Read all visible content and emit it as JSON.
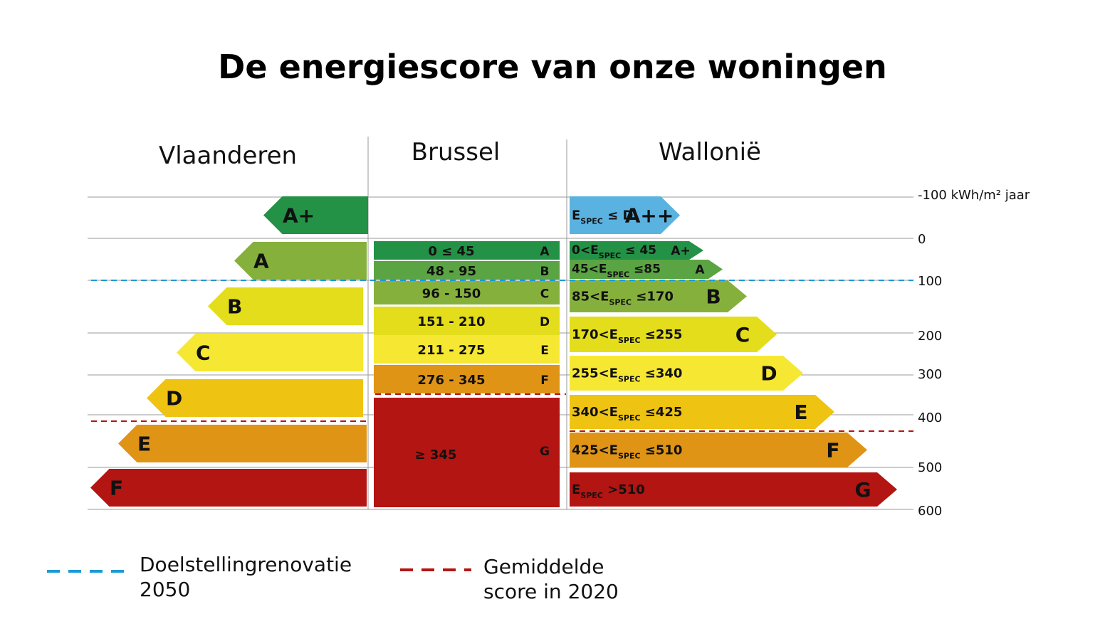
{
  "title": "De energiescore van onze woningen",
  "regions": {
    "vlaanderen": "Vlaanderen",
    "brussel": "Brussel",
    "wallonie": "Wallonië"
  },
  "scale_labels": [
    "-100 kWh/m² jaar",
    "0",
    "100",
    "200",
    "300",
    "400",
    "500",
    "600"
  ],
  "colors": {
    "app": "#5ab2e0",
    "ap": "#239146",
    "a": "#5ba443",
    "b_light": "#86b03c",
    "yellow_green": "#e3dd1c",
    "yellow": "#f6e832",
    "gold": "#eec312",
    "orange": "#df9416",
    "red": "#b31512",
    "target_line": "#1a9ad6",
    "average_line": "#b31512"
  },
  "vlaanderen": [
    {
      "label": "A+",
      "color": "#239146"
    },
    {
      "label": "A",
      "color": "#86b03c"
    },
    {
      "label": "B",
      "color": "#e3dd1c"
    },
    {
      "label": "C",
      "color": "#f6e832"
    },
    {
      "label": "D",
      "color": "#eec312"
    },
    {
      "label": "E",
      "color": "#df9416"
    },
    {
      "label": "F",
      "color": "#b31512"
    }
  ],
  "brussel": [
    {
      "range": "0 ≤ 45",
      "label": "A",
      "color": "#239146"
    },
    {
      "range": "48 - 95",
      "label": "B",
      "color": "#5ba443"
    },
    {
      "range": "96 - 150",
      "label": "C",
      "color": "#86b03c"
    },
    {
      "range": "151 - 210",
      "label": "D",
      "color": "#e3dd1c"
    },
    {
      "range": "211 - 275",
      "label": "E",
      "color": "#f6e832"
    },
    {
      "range": "276 - 345",
      "label": "F",
      "color": "#df9416"
    },
    {
      "range": "≥ 345",
      "label": "G",
      "color": "#b31512"
    }
  ],
  "wallonie": [
    {
      "pre": "E",
      "sub": "SPEC",
      "post": " ≤ D",
      "label": "A++",
      "color": "#5ab2e0"
    },
    {
      "pre": "0<E",
      "sub": "SPEC",
      "post": " ≤ 45",
      "label": "A+",
      "color": "#239146"
    },
    {
      "pre": "45<E",
      "sub": "SPEC",
      "post": " ≤85",
      "label": "A",
      "color": "#5ba443"
    },
    {
      "pre": "85<E",
      "sub": "SPEC",
      "post": " ≤170",
      "label": "B",
      "color": "#86b03c"
    },
    {
      "pre": "170<E",
      "sub": "SPEC",
      "post": " ≤255",
      "label": "C",
      "color": "#e3dd1c"
    },
    {
      "pre": "255<E",
      "sub": "SPEC",
      "post": " ≤340",
      "label": "D",
      "color": "#f6e832"
    },
    {
      "pre": "340<E",
      "sub": "SPEC",
      "post": " ≤425",
      "label": "E",
      "color": "#eec312"
    },
    {
      "pre": "425<E",
      "sub": "SPEC",
      "post": " ≤510",
      "label": "F",
      "color": "#df9416"
    },
    {
      "pre": "E",
      "sub": "SPEC",
      "post": " >510",
      "label": "G",
      "color": "#b31512"
    }
  ],
  "legend": {
    "target": {
      "line1": "Doelstellingrenovatie",
      "line2": "2050"
    },
    "average": {
      "line1": "Gemiddelde",
      "line2": "score in 2020"
    }
  }
}
